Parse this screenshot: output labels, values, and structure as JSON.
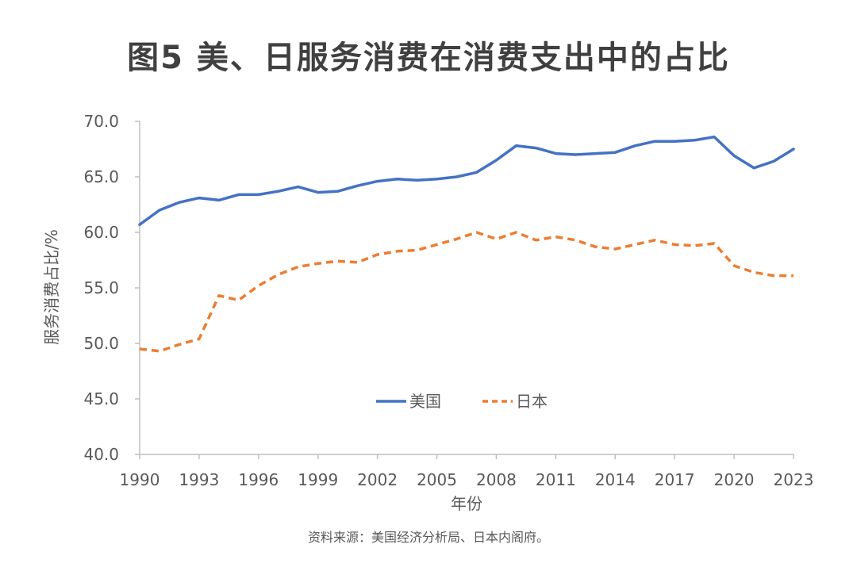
{
  "page": {
    "title": "图5 美、日服务消费在消费支出中的占比",
    "source": "资料来源：美国经济分析局、日本内阁府。"
  },
  "chart_data": {
    "type": "line",
    "title": "图5 美、日服务消费在消费支出中的占比",
    "xlabel": "年份",
    "ylabel": "服务消费占比/%",
    "ylim": [
      40,
      70
    ],
    "yticks": [
      "40.0",
      "45.0",
      "50.0",
      "55.0",
      "60.0",
      "65.0",
      "70.0"
    ],
    "xlim": [
      1990,
      2023
    ],
    "xticks": [
      "1990",
      "1993",
      "1996",
      "1999",
      "2002",
      "2005",
      "2008",
      "2011",
      "2014",
      "2017",
      "2020",
      "2023"
    ],
    "legend_position": "center",
    "x": [
      1990,
      1991,
      1992,
      1993,
      1994,
      1995,
      1996,
      1997,
      1998,
      1999,
      2000,
      2001,
      2002,
      2003,
      2004,
      2005,
      2006,
      2007,
      2008,
      2009,
      2010,
      2011,
      2012,
      2013,
      2014,
      2015,
      2016,
      2017,
      2018,
      2019,
      2020,
      2021,
      2022,
      2023
    ],
    "series": [
      {
        "name": "美国",
        "color": "#4472C4",
        "style": "solid",
        "values": [
          60.7,
          62.0,
          62.7,
          63.1,
          62.9,
          63.4,
          63.4,
          63.7,
          64.1,
          63.6,
          63.7,
          64.2,
          64.6,
          64.8,
          64.7,
          64.8,
          65.0,
          65.4,
          66.5,
          67.8,
          67.6,
          67.1,
          67.0,
          67.1,
          67.2,
          67.8,
          68.2,
          68.2,
          68.3,
          68.6,
          66.9,
          65.8,
          66.4,
          67.5
        ]
      },
      {
        "name": "日本",
        "color": "#ED7D31",
        "style": "dashed",
        "values": [
          49.5,
          49.3,
          49.9,
          50.4,
          54.3,
          53.9,
          55.2,
          56.2,
          56.9,
          57.2,
          57.4,
          57.3,
          58.0,
          58.3,
          58.4,
          58.9,
          59.4,
          60.0,
          59.4,
          60.0,
          59.3,
          59.6,
          59.3,
          58.7,
          58.5,
          58.9,
          59.3,
          58.9,
          58.8,
          59.0,
          57.0,
          56.4,
          56.1,
          56.1
        ]
      }
    ]
  }
}
